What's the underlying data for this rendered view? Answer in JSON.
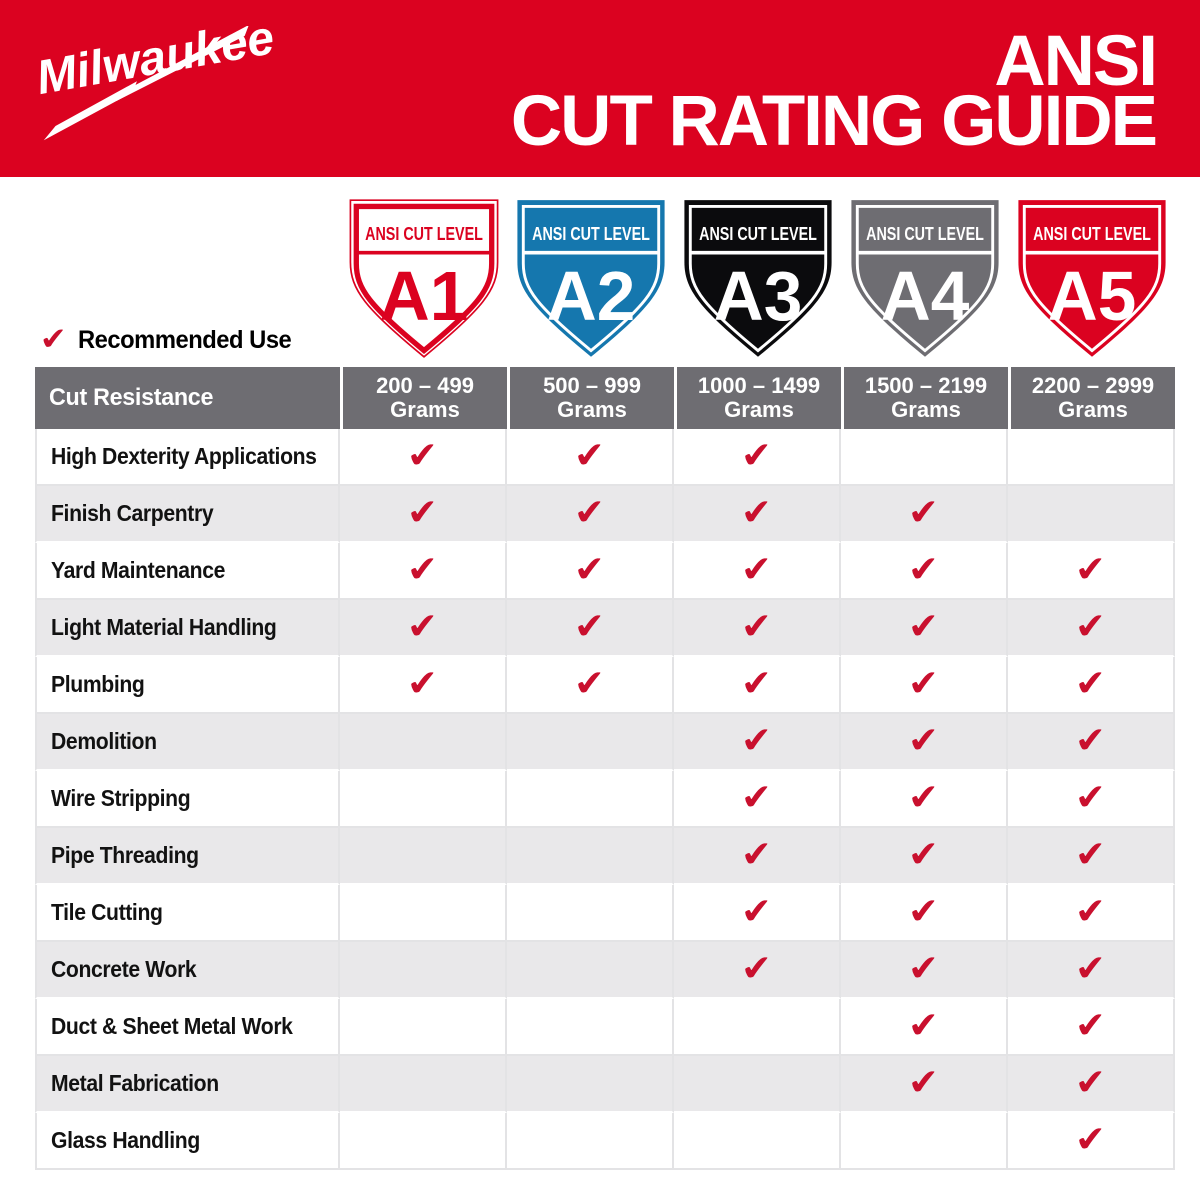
{
  "header": {
    "brand": "Milwaukee",
    "brand_reg": "®",
    "title_line1": "ANSI",
    "title_line2": "CUT RATING GUIDE"
  },
  "legend": {
    "check_glyph": "✔",
    "label": "Recommended Use"
  },
  "shields": [
    {
      "code": "A1",
      "label": "ANSI CUT LEVEL",
      "style": "outline",
      "bg": "#FFFFFF",
      "fg": "#DB0220"
    },
    {
      "code": "A2",
      "label": "ANSI CUT LEVEL",
      "style": "solid",
      "bg": "#1577AE",
      "fg": "#FFFFFF"
    },
    {
      "code": "A3",
      "label": "ANSI CUT LEVEL",
      "style": "solid",
      "bg": "#0B0B0D",
      "fg": "#FFFFFF"
    },
    {
      "code": "A4",
      "label": "ANSI CUT LEVEL",
      "style": "solid",
      "bg": "#6E6D72",
      "fg": "#FFFFFF"
    },
    {
      "code": "A5",
      "label": "ANSI CUT LEVEL",
      "style": "solid",
      "bg": "#DB0220",
      "fg": "#FFFFFF"
    }
  ],
  "table": {
    "corner_label": "Cut Resistance",
    "check_glyph": "✔",
    "columns": [
      {
        "range": "200 – 499",
        "unit": "Grams"
      },
      {
        "range": "500 – 999",
        "unit": "Grams"
      },
      {
        "range": "1000 – 1499",
        "unit": "Grams"
      },
      {
        "range": "1500 – 2199",
        "unit": "Grams"
      },
      {
        "range": "2200 – 2999",
        "unit": "Grams"
      }
    ],
    "rows": [
      {
        "label": "High Dexterity Applications",
        "checks": [
          1,
          1,
          1,
          0,
          0
        ]
      },
      {
        "label": "Finish Carpentry",
        "checks": [
          1,
          1,
          1,
          1,
          0
        ]
      },
      {
        "label": "Yard Maintenance",
        "checks": [
          1,
          1,
          1,
          1,
          1
        ]
      },
      {
        "label": "Light Material Handling",
        "checks": [
          1,
          1,
          1,
          1,
          1
        ]
      },
      {
        "label": "Plumbing",
        "checks": [
          1,
          1,
          1,
          1,
          1
        ]
      },
      {
        "label": "Demolition",
        "checks": [
          0,
          0,
          1,
          1,
          1
        ]
      },
      {
        "label": "Wire Stripping",
        "checks": [
          0,
          0,
          1,
          1,
          1
        ]
      },
      {
        "label": "Pipe Threading",
        "checks": [
          0,
          0,
          1,
          1,
          1
        ]
      },
      {
        "label": "Tile Cutting",
        "checks": [
          0,
          0,
          1,
          1,
          1
        ]
      },
      {
        "label": "Concrete Work",
        "checks": [
          0,
          0,
          1,
          1,
          1
        ]
      },
      {
        "label": "Duct & Sheet Metal Work",
        "checks": [
          0,
          0,
          0,
          1,
          1
        ]
      },
      {
        "label": "Metal Fabrication",
        "checks": [
          0,
          0,
          0,
          1,
          1
        ]
      },
      {
        "label": "Glass Handling",
        "checks": [
          0,
          0,
          0,
          0,
          1
        ]
      }
    ]
  },
  "colors": {
    "brand_red": "#DB0220",
    "check_red": "#C9102E",
    "header_gray": "#6E6D72",
    "row_alt": "#E9E8EA",
    "shield_blue": "#1577AE",
    "shield_black": "#0B0B0D"
  }
}
